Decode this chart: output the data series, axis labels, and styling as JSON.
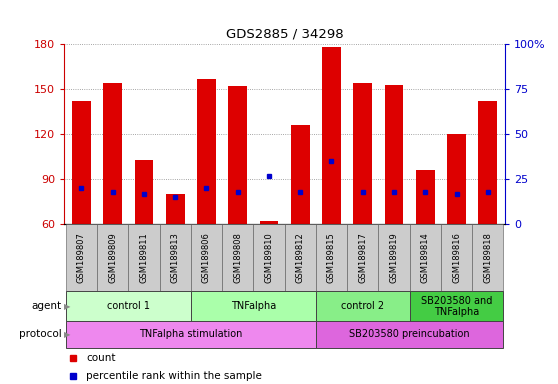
{
  "title": "GDS2885 / 34298",
  "samples": [
    "GSM189807",
    "GSM189809",
    "GSM189811",
    "GSM189813",
    "GSM189806",
    "GSM189808",
    "GSM189810",
    "GSM189812",
    "GSM189815",
    "GSM189817",
    "GSM189819",
    "GSM189814",
    "GSM189816",
    "GSM189818"
  ],
  "count_values": [
    142,
    154,
    103,
    80,
    157,
    152,
    62,
    126,
    178,
    154,
    153,
    96,
    120,
    142
  ],
  "percentile_values": [
    20,
    18,
    17,
    15,
    20,
    18,
    27,
    18,
    35,
    18,
    18,
    18,
    17,
    18
  ],
  "ylim": [
    60,
    180
  ],
  "y2lim": [
    0,
    100
  ],
  "yticks": [
    60,
    90,
    120,
    150,
    180
  ],
  "y2ticks": [
    0,
    25,
    50,
    75,
    100
  ],
  "bar_color": "#dd0000",
  "percentile_color": "#0000cc",
  "agent_groups": [
    {
      "label": "control 1",
      "start": 0,
      "end": 3,
      "color": "#ccffcc"
    },
    {
      "label": "TNFalpha",
      "start": 4,
      "end": 7,
      "color": "#aaffaa"
    },
    {
      "label": "control 2",
      "start": 8,
      "end": 10,
      "color": "#88ee88"
    },
    {
      "label": "SB203580 and\nTNFalpha",
      "start": 11,
      "end": 13,
      "color": "#44cc44"
    }
  ],
  "protocol_groups": [
    {
      "label": "TNFalpha stimulation",
      "start": 0,
      "end": 7,
      "color": "#ee88ee"
    },
    {
      "label": "SB203580 preincubation",
      "start": 8,
      "end": 13,
      "color": "#dd66dd"
    }
  ],
  "grid_color": "#888888",
  "tick_color_left": "#cc0000",
  "tick_color_right": "#0000cc",
  "bar_width": 0.6,
  "sample_bg_color": "#cccccc",
  "bg_color": "#ffffff"
}
